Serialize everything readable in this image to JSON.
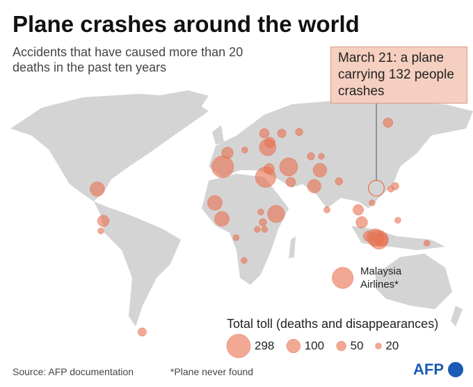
{
  "header": {
    "title": "Plane crashes around the world",
    "subtitle": "Accidents that have caused more than 20 deaths in the past ten years"
  },
  "annotation": {
    "text": "March 21: a plane carrying 132 people crashes",
    "lon": 118,
    "lat": 23,
    "toll": 132
  },
  "map": {
    "color": "#e8704f",
    "land": "#d4d4d4",
    "crashes": [
      {
        "lon": -97.7,
        "lat": 22.4,
        "toll": 112
      },
      {
        "lon": -93,
        "lat": 0,
        "toll": 71
      },
      {
        "lon": -95,
        "lat": -7,
        "toll": 20
      },
      {
        "lon": -63,
        "lat": -78,
        "toll": 38
      },
      {
        "lon": -6.8,
        "lat": 12.7,
        "toll": 116
      },
      {
        "lon": -1.4,
        "lat": 1.5,
        "toll": 116
      },
      {
        "lon": -0.8,
        "lat": 38,
        "toll": 257
      },
      {
        "lon": 2.9,
        "lat": 47.8,
        "toll": 71
      },
      {
        "lon": 16.3,
        "lat": 49.8,
        "toll": 20
      },
      {
        "lon": 31.4,
        "lat": 61.5,
        "toll": 50
      },
      {
        "lon": 34,
        "lat": 51.7,
        "toll": 150
      },
      {
        "lon": 35.7,
        "lat": 55.1,
        "toll": 60
      },
      {
        "lon": 44.9,
        "lat": 61.5,
        "toll": 40
      },
      {
        "lon": 58.3,
        "lat": 62.4,
        "toll": 30
      },
      {
        "lon": 32.4,
        "lat": 30.7,
        "toll": 224
      },
      {
        "lon": 35.1,
        "lat": 36.6,
        "toll": 60
      },
      {
        "lon": 50.2,
        "lat": 38,
        "toll": 176
      },
      {
        "lon": 51.8,
        "lat": 27.3,
        "toll": 50
      },
      {
        "lon": 40.5,
        "lat": 4.9,
        "toll": 157
      },
      {
        "lon": 30.3,
        "lat": -1,
        "toll": 30
      },
      {
        "lon": 28.7,
        "lat": 6.3,
        "toll": 20
      },
      {
        "lon": 26,
        "lat": -5.9,
        "toll": 20
      },
      {
        "lon": 31.6,
        "lat": -5.9,
        "toll": 20
      },
      {
        "lon": 9.6,
        "lat": -11.7,
        "toll": 20
      },
      {
        "lon": 15.8,
        "lat": -27.8,
        "toll": 20
      },
      {
        "lon": 70,
        "lat": 24.4,
        "toll": 97
      },
      {
        "lon": 74.4,
        "lat": 35.6,
        "toll": 100
      },
      {
        "lon": 67.4,
        "lat": 45.4,
        "toll": 30
      },
      {
        "lon": 75.5,
        "lat": 45.4,
        "toll": 20
      },
      {
        "lon": 89.1,
        "lat": 27.8,
        "toll": 30
      },
      {
        "lon": 79.8,
        "lat": 7.8,
        "toll": 21
      },
      {
        "lon": 104,
        "lat": 7.8,
        "toll": 60
      },
      {
        "lon": 106.7,
        "lat": -1,
        "toll": 71
      },
      {
        "lon": 112,
        "lat": -10.7,
        "toll": 60
      },
      {
        "lon": 120,
        "lat": -13.2,
        "toll": 189
      },
      {
        "lon": 117.4,
        "lat": -11.7,
        "toll": 162
      },
      {
        "lon": 121.7,
        "lat": -13.2,
        "toll": 100
      },
      {
        "lon": 132.5,
        "lat": 24.4,
        "toll": 30
      },
      {
        "lon": 129.2,
        "lat": 22.4,
        "toll": 20
      },
      {
        "lon": 114.7,
        "lat": 12.7,
        "toll": 20
      },
      {
        "lon": 127,
        "lat": 69,
        "toll": 50
      },
      {
        "lon": 134.6,
        "lat": 0.5,
        "toll": 20
      },
      {
        "lon": 157,
        "lat": -15.6,
        "toll": 20
      }
    ],
    "malaysia": {
      "label": "Malaysia Airlines*",
      "lon": 92,
      "lat": -40,
      "toll": 239
    }
  },
  "legend": {
    "title": "Total toll (deaths and disappearances)",
    "sizes": [
      298,
      100,
      50,
      20
    ]
  },
  "footer": {
    "source": "Source: AFP documentation",
    "note": "*Plane never found",
    "logo": "AFP"
  }
}
